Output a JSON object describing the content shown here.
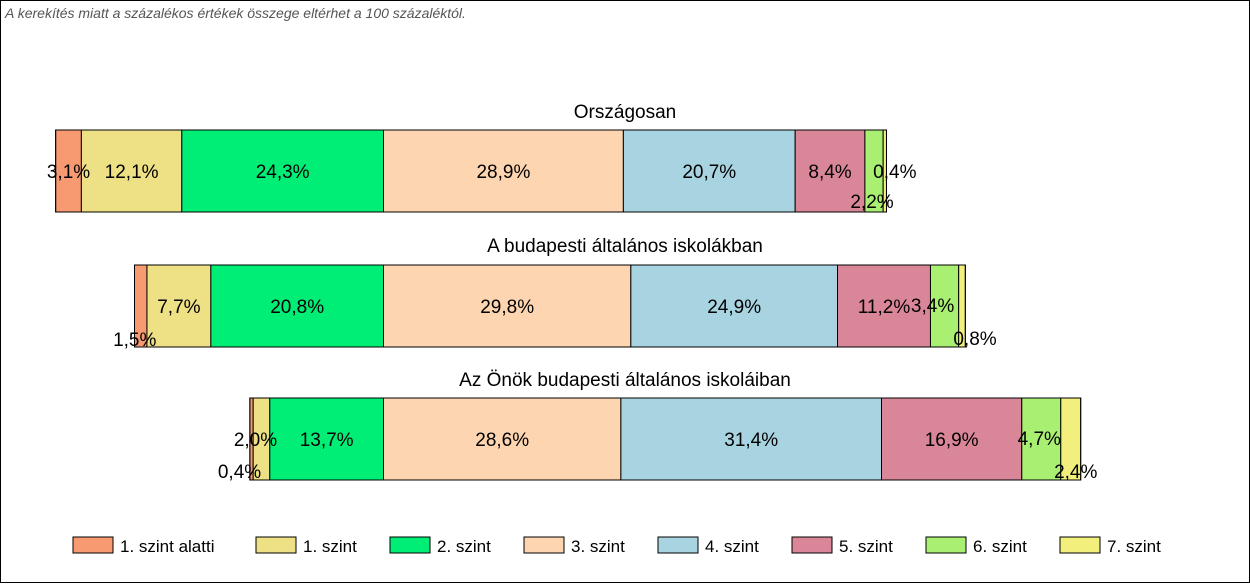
{
  "note": "A kerekítés miatt a  százalékos értékek összege eltérhet a 100 százaléktól.",
  "chart_data": {
    "type": "bar",
    "orientation": "horizontal-stacked-diverging",
    "categories": [
      "1. szint alatti",
      "1. szint",
      "2. szint",
      "3. szint",
      "4. szint",
      "5. szint",
      "6. szint",
      "7. szint"
    ],
    "colors": [
      "#f79a72",
      "#ede085",
      "#00ee76",
      "#fdd5b1",
      "#a8d3e0",
      "#d98698",
      "#a9ef72",
      "#f2ef7d"
    ],
    "centered_between": [
      "2. szint",
      "3. szint"
    ],
    "legend_position": "bottom",
    "grid": false,
    "rows": [
      {
        "title": "Országosan",
        "values": [
          3.1,
          12.1,
          24.3,
          28.9,
          20.7,
          8.4,
          2.2,
          0.4
        ],
        "labels": [
          "3,1%",
          "12,1%",
          "24,3%",
          "28,9%",
          "20,7%",
          "8,4%",
          "2,2%",
          "0,4%"
        ]
      },
      {
        "title": "A budapesti általános iskolákban",
        "values": [
          1.5,
          7.7,
          20.8,
          29.8,
          24.9,
          11.2,
          3.4,
          0.8
        ],
        "labels": [
          "1,5%",
          "7,7%",
          "20,8%",
          "29,8%",
          "24,9%",
          "11,2%",
          "3,4%",
          "0,8%"
        ]
      },
      {
        "title": "Az Önök budapesti általános iskoláiban",
        "values": [
          0.4,
          2.0,
          13.7,
          28.6,
          31.4,
          16.9,
          4.7,
          2.4
        ],
        "labels": [
          "0,4%",
          "2,0%",
          "13,7%",
          "28,6%",
          "31,4%",
          "16,9%",
          "4,7%",
          "2,4%"
        ]
      }
    ]
  }
}
